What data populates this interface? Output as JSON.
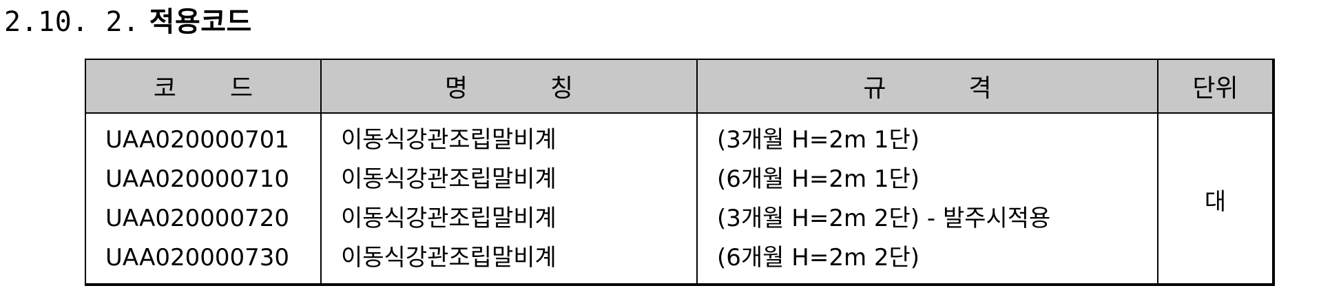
{
  "heading": {
    "number": "2.10. 2.",
    "title": "적용코드"
  },
  "table": {
    "headers": {
      "code": [
        "코",
        "드"
      ],
      "name": [
        "명",
        "칭"
      ],
      "spec": [
        "규",
        "격"
      ],
      "unit": "단위"
    },
    "rows": [
      {
        "code": "UAA020000701",
        "name": "이동식강관조립말비계",
        "spec": "(3개월 H=2m 1단)"
      },
      {
        "code": "UAA020000710",
        "name": "이동식강관조립말비계",
        "spec": "(6개월 H=2m 1단)"
      },
      {
        "code": "UAA020000720",
        "name": "이동식강관조립말비계",
        "spec": "(3개월 H=2m 2단) - 발주시적용"
      },
      {
        "code": "UAA020000730",
        "name": "이동식강관조립말비계",
        "spec": "(6개월 H=2m 2단)"
      }
    ],
    "unit_value": "대"
  }
}
